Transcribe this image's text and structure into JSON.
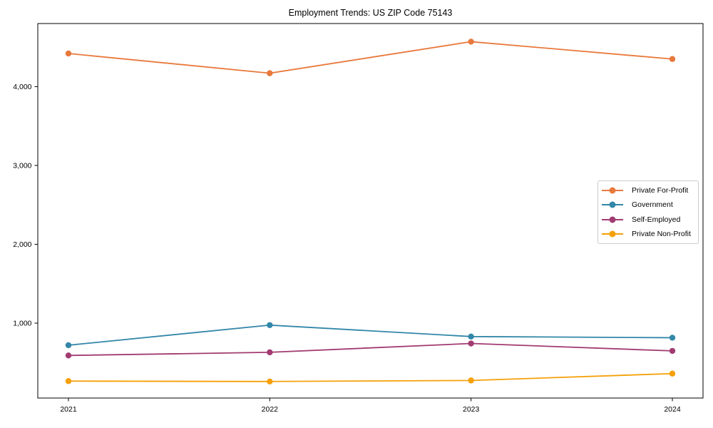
{
  "chart_data": {
    "type": "line",
    "title": "Employment Trends: US ZIP Code 75143",
    "xlabel": "",
    "ylabel": "",
    "categories": [
      "2021",
      "2022",
      "2023",
      "2024"
    ],
    "series": [
      {
        "name": "Private For-Profit",
        "color": "#E8793C",
        "values": [
          4420,
          4170,
          4570,
          4350
        ]
      },
      {
        "name": "Government",
        "color": "#3287A8",
        "values": [
          720,
          975,
          830,
          815
        ]
      },
      {
        "name": "Self-Employed",
        "color": "#A23B72",
        "values": [
          590,
          630,
          742,
          648
        ]
      },
      {
        "name": "Private Non-Profit",
        "color": "#F5A009",
        "values": [
          265,
          260,
          273,
          360
        ]
      }
    ],
    "yticks": [
      {
        "value": 1000,
        "label": "1,000"
      },
      {
        "value": 2000,
        "label": "2,000"
      },
      {
        "value": 3000,
        "label": "3,000"
      },
      {
        "value": 4000,
        "label": "4,000"
      }
    ],
    "ylim": [
      50,
      4800
    ],
    "grid": false,
    "legend_position": "center-right",
    "marker": "circle",
    "spine_color": "#000000"
  }
}
